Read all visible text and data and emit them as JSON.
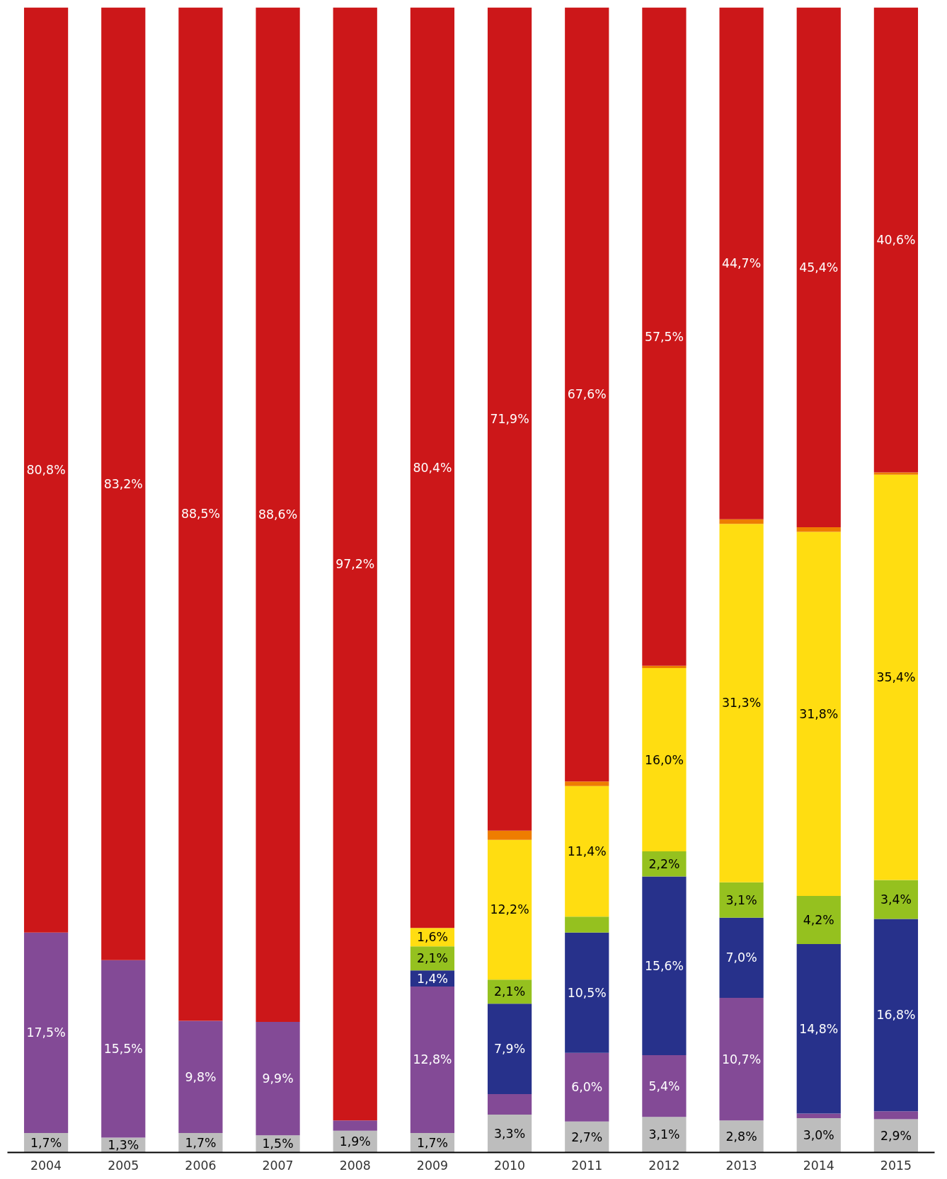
{
  "chart_data": {
    "type": "bar",
    "stacked": true,
    "categories": [
      "2004",
      "2005",
      "2006",
      "2007",
      "2008",
      "2009",
      "2010",
      "2011",
      "2012",
      "2013",
      "2014",
      "2015"
    ],
    "ylim": [
      0,
      100
    ],
    "tick_labels": "x",
    "series": [
      {
        "color": "#bdbdbd",
        "values": [
          1.7,
          1.3,
          1.7,
          1.5,
          1.9,
          1.7,
          3.3,
          2.7,
          3.1,
          2.8,
          3.0,
          2.9
        ],
        "value_labels": [
          "1,7%",
          "1,3%",
          "1,7%",
          "1,5%",
          "1,9%",
          "1,7%",
          "3,3%",
          "2,7%",
          "3,1%",
          "2,8%",
          "3,0%",
          "2,9%"
        ]
      },
      {
        "color": "#834a96",
        "values": [
          17.5,
          15.5,
          9.8,
          9.9,
          0.9,
          12.8,
          1.8,
          6.0,
          5.4,
          10.7,
          0.4,
          0.7
        ],
        "value_labels": [
          "17,5%",
          "15,5%",
          "9,8%",
          "9,9%",
          null,
          "12,8%",
          null,
          "6,0%",
          "5,4%",
          "10,7%",
          null,
          null
        ]
      },
      {
        "color": "#27318b",
        "values": [
          null,
          null,
          null,
          null,
          null,
          1.4,
          7.9,
          10.5,
          15.6,
          7.0,
          14.8,
          16.8
        ],
        "value_labels": [
          null,
          null,
          null,
          null,
          null,
          "1,4%",
          "7,9%",
          "10,5%",
          "15,6%",
          "7,0%",
          "14,8%",
          "16,8%"
        ]
      },
      {
        "color": "#95c11f",
        "values": [
          null,
          null,
          null,
          null,
          null,
          2.1,
          2.1,
          1.4,
          2.2,
          3.1,
          4.2,
          3.4
        ],
        "value_labels": [
          null,
          null,
          null,
          null,
          null,
          "2,1%",
          "2,1%",
          null,
          "2,2%",
          "3,1%",
          "4,2%",
          "3,4%"
        ]
      },
      {
        "color": "#ffdd11",
        "values": [
          null,
          null,
          null,
          null,
          null,
          1.6,
          12.2,
          11.4,
          16.0,
          31.3,
          31.8,
          35.4
        ],
        "value_labels": [
          null,
          null,
          null,
          null,
          null,
          "1,6%",
          "12,2%",
          "11,4%",
          "16,0%",
          "31,3%",
          "31,8%",
          "35,4%"
        ]
      },
      {
        "color": "#ee7d00",
        "values": [
          null,
          null,
          null,
          null,
          null,
          null,
          0.8,
          0.4,
          0.2,
          0.4,
          0.4,
          0.2
        ]
      },
      {
        "color": "#cc1719",
        "values": [
          80.8,
          83.2,
          88.5,
          88.6,
          97.2,
          80.4,
          71.9,
          67.6,
          57.5,
          44.7,
          45.4,
          40.6
        ],
        "value_labels": [
          "80,8%",
          "83,2%",
          "88,5%",
          "88,6%",
          "97,2%",
          "80,4%",
          "71,9%",
          "67,6%",
          "57,5%",
          "44,7%",
          "45,4%",
          "40,6%"
        ]
      }
    ]
  }
}
